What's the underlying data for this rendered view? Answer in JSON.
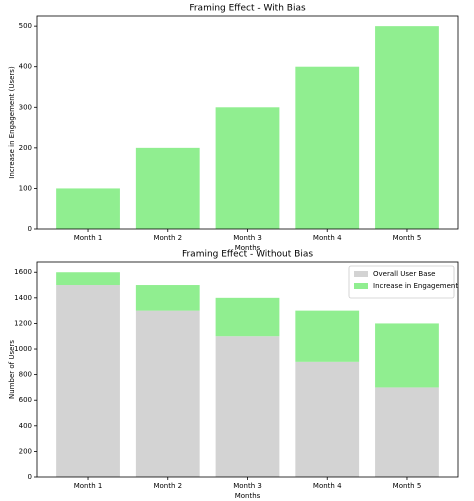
{
  "chart_data": [
    {
      "type": "bar",
      "title": "Framing Effect - With Bias",
      "x_label": "Months",
      "y_label": "Increase in Engagement (Users)",
      "categories": [
        "Month 1",
        "Month 2",
        "Month 3",
        "Month 4",
        "Month 5"
      ],
      "values": [
        100,
        200,
        300,
        400,
        500
      ],
      "color": "#90ee90",
      "ylim": [
        0,
        525
      ],
      "yticks": [
        0,
        100,
        200,
        300,
        400,
        500
      ]
    },
    {
      "type": "stacked_bar",
      "title": "Framing Effect - Without Bias",
      "x_label": "Months",
      "y_label": "Number of Users",
      "categories": [
        "Month 1",
        "Month 2",
        "Month 3",
        "Month 4",
        "Month 5"
      ],
      "series": [
        {
          "name": "Overall User Base",
          "color": "#d3d3d3",
          "values": [
            1500,
            1300,
            1100,
            900,
            700
          ]
        },
        {
          "name": "Increase in Engagement",
          "color": "#90ee90",
          "values": [
            100,
            200,
            300,
            400,
            500
          ]
        }
      ],
      "ylim": [
        0,
        1680
      ],
      "yticks": [
        0,
        200,
        400,
        600,
        800,
        1000,
        1200,
        1400,
        1600
      ],
      "legend": "upper right"
    }
  ]
}
